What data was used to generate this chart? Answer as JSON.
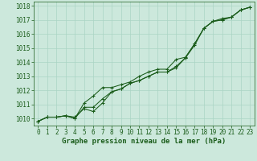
{
  "title": "Graphe pression niveau de la mer (hPa)",
  "bg_color": "#cce8dc",
  "grid_color": "#aad4c4",
  "line_color": "#1a5c1a",
  "xlim": [
    -0.5,
    23.5
  ],
  "ylim": [
    1009.5,
    1018.3
  ],
  "yticks": [
    1010,
    1011,
    1012,
    1013,
    1014,
    1015,
    1016,
    1017,
    1018
  ],
  "xticks": [
    0,
    1,
    2,
    3,
    4,
    5,
    6,
    7,
    8,
    9,
    10,
    11,
    12,
    13,
    14,
    15,
    16,
    17,
    18,
    19,
    20,
    21,
    22,
    23
  ],
  "series1": [
    1009.8,
    1010.1,
    1010.1,
    1010.2,
    1010.0,
    1010.8,
    1010.8,
    1011.4,
    1011.9,
    1012.1,
    1012.5,
    1012.7,
    1013.0,
    1013.3,
    1013.3,
    1013.7,
    1014.3,
    1015.3,
    1016.4,
    1016.9,
    1017.0,
    1017.2,
    1017.7,
    1017.9
  ],
  "series2": [
    1009.8,
    1010.1,
    1010.1,
    1010.2,
    1010.0,
    1011.1,
    1011.6,
    1012.2,
    1012.2,
    1012.4,
    1012.6,
    1013.0,
    1013.3,
    1013.5,
    1013.5,
    1014.2,
    1014.35,
    1015.3,
    1016.4,
    1016.9,
    1017.0,
    1017.2,
    1017.7,
    1017.9
  ],
  "series3": [
    1009.8,
    1010.1,
    1010.1,
    1010.2,
    1010.1,
    1010.7,
    1010.5,
    1011.1,
    1011.9,
    1012.1,
    1012.5,
    1012.7,
    1013.0,
    1013.3,
    1013.3,
    1013.6,
    1014.3,
    1015.2,
    1016.4,
    1016.9,
    1017.1,
    1017.2,
    1017.7,
    1017.9
  ],
  "title_fontsize": 6.5,
  "tick_fontsize": 5.5
}
